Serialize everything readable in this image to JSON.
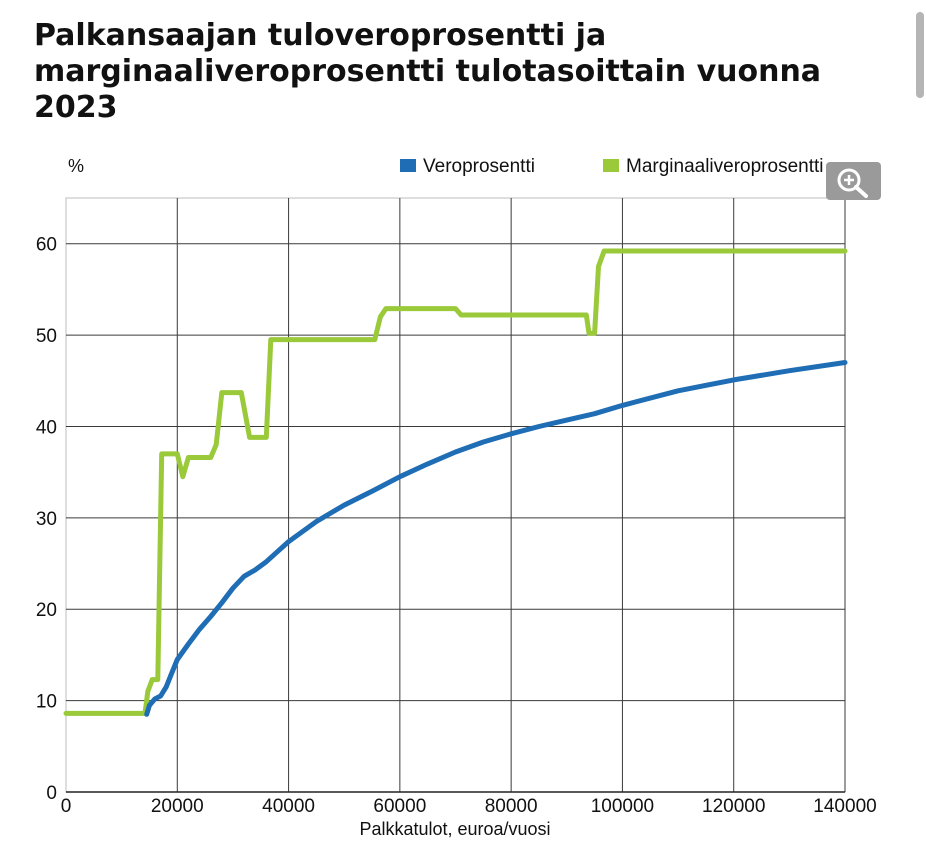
{
  "page": {
    "title": "Palkansaajan tuloveroprosentti ja marginaaliveroprosentti tulotasoittain vuonna 2023"
  },
  "chart_data": {
    "type": "line",
    "xlabel": "Palkkatulot, euroa/vuosi",
    "ylabel": "%",
    "xlim": [
      0,
      140000
    ],
    "ylim": [
      0,
      65
    ],
    "xticks": [
      0,
      20000,
      40000,
      60000,
      80000,
      100000,
      120000,
      140000
    ],
    "yticks": [
      0,
      10,
      20,
      30,
      40,
      50,
      60
    ],
    "grid": true,
    "legend_position": "top-right",
    "series": [
      {
        "name": "Veroprosentti",
        "color": "#1f6db5",
        "points": [
          [
            14500,
            8.5
          ],
          [
            15000,
            9.5
          ],
          [
            16000,
            10.2
          ],
          [
            17000,
            10.5
          ],
          [
            18000,
            11.5
          ],
          [
            19000,
            13.0
          ],
          [
            20000,
            14.5
          ],
          [
            22000,
            16.2
          ],
          [
            24000,
            17.8
          ],
          [
            26000,
            19.2
          ],
          [
            28000,
            20.7
          ],
          [
            30000,
            22.3
          ],
          [
            32000,
            23.6
          ],
          [
            34000,
            24.3
          ],
          [
            36000,
            25.2
          ],
          [
            38000,
            26.3
          ],
          [
            40000,
            27.4
          ],
          [
            45000,
            29.6
          ],
          [
            50000,
            31.4
          ],
          [
            55000,
            32.9
          ],
          [
            60000,
            34.5
          ],
          [
            65000,
            35.9
          ],
          [
            70000,
            37.2
          ],
          [
            75000,
            38.3
          ],
          [
            80000,
            39.2
          ],
          [
            85000,
            40.0
          ],
          [
            90000,
            40.7
          ],
          [
            95000,
            41.4
          ],
          [
            100000,
            42.3
          ],
          [
            110000,
            43.9
          ],
          [
            120000,
            45.1
          ],
          [
            130000,
            46.1
          ],
          [
            140000,
            47.0
          ]
        ]
      },
      {
        "name": "Marginaaliveroprosentti",
        "color": "#9ac93a",
        "points": [
          [
            0,
            8.6
          ],
          [
            14200,
            8.6
          ],
          [
            14700,
            11.0
          ],
          [
            15500,
            12.3
          ],
          [
            16500,
            12.3
          ],
          [
            17200,
            37.0
          ],
          [
            20000,
            37.0
          ],
          [
            21000,
            34.5
          ],
          [
            22000,
            36.6
          ],
          [
            26000,
            36.6
          ],
          [
            27000,
            38.0
          ],
          [
            28000,
            43.7
          ],
          [
            31500,
            43.7
          ],
          [
            33000,
            38.8
          ],
          [
            36000,
            38.8
          ],
          [
            36800,
            49.5
          ],
          [
            55500,
            49.5
          ],
          [
            56500,
            52.0
          ],
          [
            57500,
            52.9
          ],
          [
            70000,
            52.9
          ],
          [
            71000,
            52.2
          ],
          [
            93500,
            52.2
          ],
          [
            94000,
            50.2
          ],
          [
            95000,
            50.2
          ],
          [
            95700,
            57.5
          ],
          [
            96700,
            59.2
          ],
          [
            140000,
            59.2
          ]
        ]
      }
    ]
  },
  "ui": {
    "zoom_icon": "zoom-in-icon"
  }
}
